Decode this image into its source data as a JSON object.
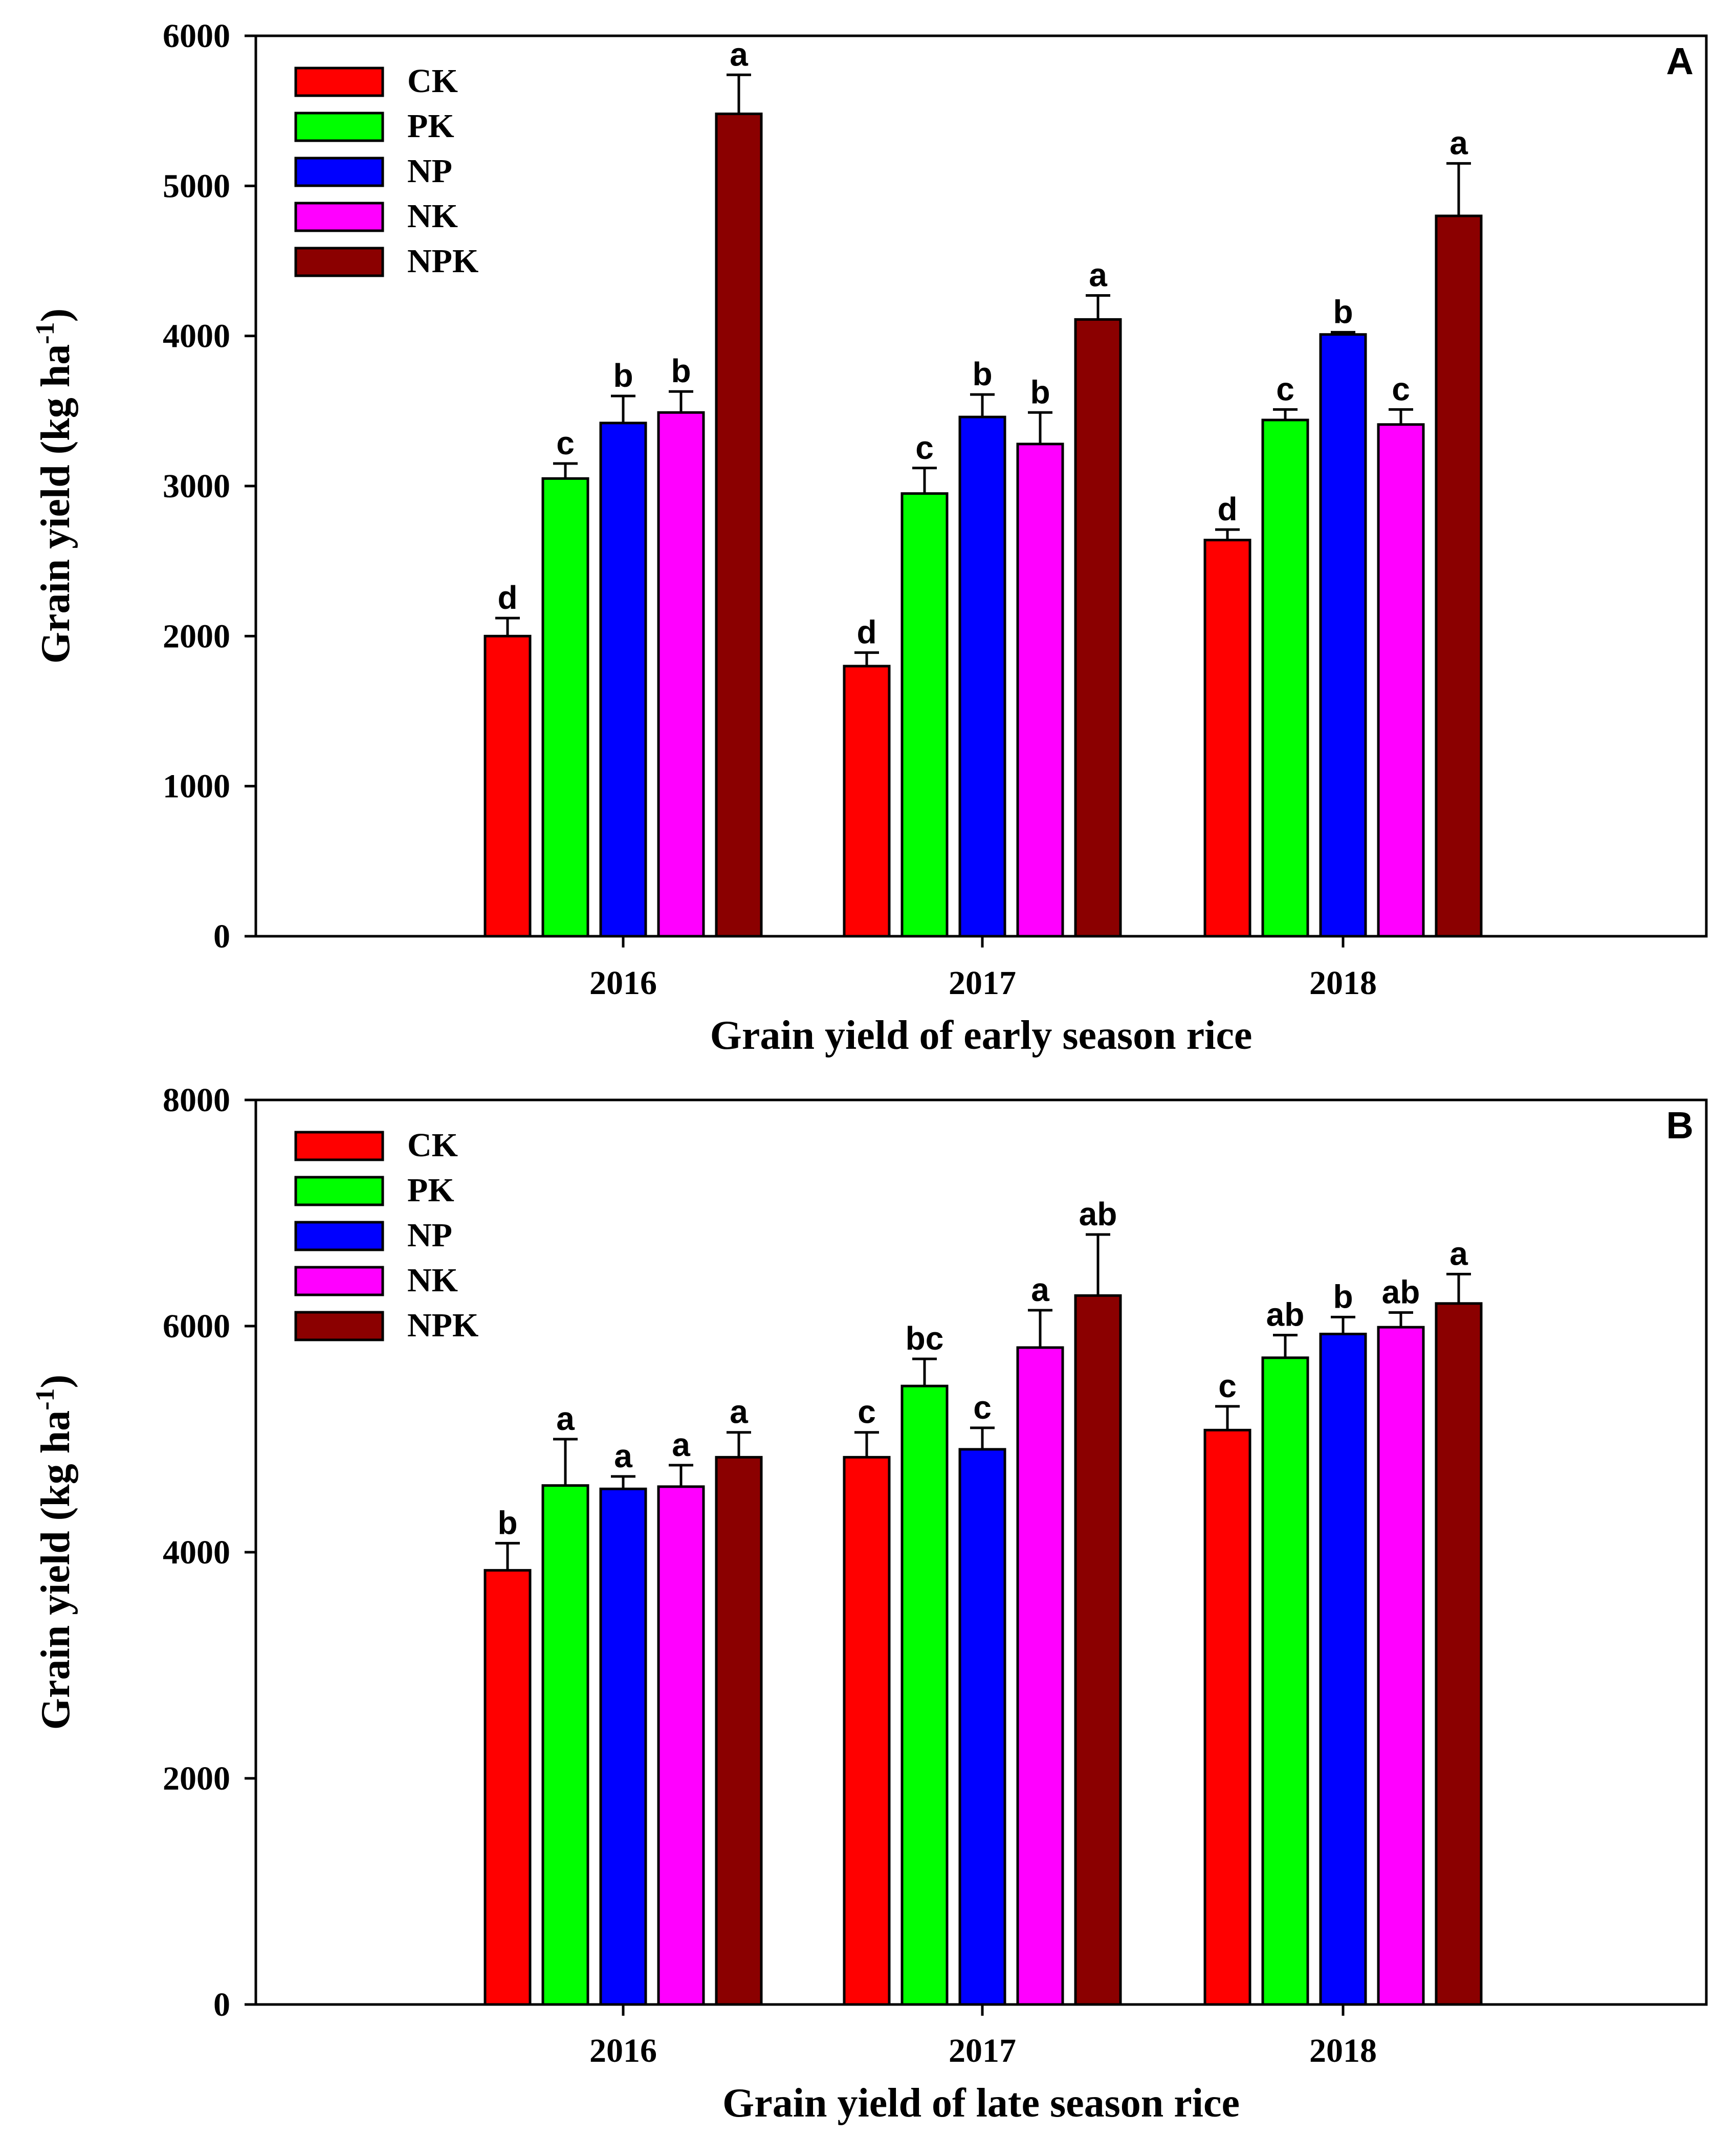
{
  "colors": {
    "CK": "#ff0000",
    "PK": "#00ff00",
    "NP": "#0000ff",
    "NK": "#ff00ff",
    "NPK": "#8b0000"
  },
  "chart_data": [
    {
      "type": "bar",
      "panel_label": "A",
      "title": "",
      "xlabel": "Grain yield of early season rice",
      "ylabel": "Grain yield (kg ha",
      "ylabel_superscript": "-1",
      "ylabel_close": ")",
      "ylim": [
        0,
        6000
      ],
      "yticks": [
        0,
        1000,
        2000,
        3000,
        4000,
        5000,
        6000
      ],
      "categories": [
        "2016",
        "2017",
        "2018"
      ],
      "legend_position": "top-left",
      "series": [
        {
          "name": "CK",
          "values": [
            2000,
            1800,
            2640
          ],
          "errors": [
            120,
            90,
            70
          ],
          "labels": [
            "d",
            "d",
            "d"
          ]
        },
        {
          "name": "PK",
          "values": [
            3050,
            2950,
            3440
          ],
          "errors": [
            100,
            170,
            70
          ],
          "labels": [
            "c",
            "c",
            "c"
          ]
        },
        {
          "name": "NP",
          "values": [
            3420,
            3460,
            4010
          ],
          "errors": [
            180,
            150,
            15
          ],
          "labels": [
            "b",
            "b",
            "b"
          ]
        },
        {
          "name": "NK",
          "values": [
            3490,
            3280,
            3410
          ],
          "errors": [
            140,
            210,
            100
          ],
          "labels": [
            "b",
            "b",
            "c"
          ]
        },
        {
          "name": "NPK",
          "values": [
            5480,
            4110,
            4800
          ],
          "errors": [
            260,
            160,
            350
          ],
          "labels": [
            "a",
            "a",
            "a"
          ]
        }
      ]
    },
    {
      "type": "bar",
      "panel_label": "B",
      "title": "",
      "xlabel": "Grain yield of late season rice",
      "ylabel": "Grain yield (kg ha",
      "ylabel_superscript": "-1",
      "ylabel_close": ")",
      "ylim": [
        0,
        8000
      ],
      "yticks": [
        0,
        2000,
        4000,
        6000,
        8000
      ],
      "categories": [
        "2016",
        "2017",
        "2018"
      ],
      "legend_position": "top-left",
      "series": [
        {
          "name": "CK",
          "values": [
            3840,
            4840,
            5080
          ],
          "errors": [
            240,
            220,
            210
          ],
          "labels": [
            "b",
            "c",
            "c"
          ]
        },
        {
          "name": "PK",
          "values": [
            4590,
            5470,
            5720
          ],
          "errors": [
            410,
            240,
            200
          ],
          "labels": [
            "a",
            "bc",
            "ab"
          ]
        },
        {
          "name": "NP",
          "values": [
            4560,
            4910,
            5930
          ],
          "errors": [
            110,
            190,
            150
          ],
          "labels": [
            "a",
            "c",
            "b"
          ]
        },
        {
          "name": "NK",
          "values": [
            4580,
            5810,
            5990
          ],
          "errors": [
            190,
            330,
            130
          ],
          "labels": [
            "a",
            "a",
            "ab"
          ]
        },
        {
          "name": "NPK",
          "values": [
            4840,
            6270,
            6200
          ],
          "errors": [
            220,
            540,
            260
          ],
          "labels": [
            "a",
            "ab",
            "a"
          ]
        }
      ]
    }
  ]
}
